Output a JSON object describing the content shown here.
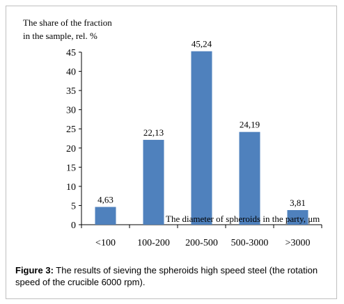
{
  "chart_data": {
    "type": "bar",
    "ylabel_line1": "The share of the fraction",
    "ylabel_line2": "in the sample, rel. %",
    "xlabel": "The diameter of spheroids in the party, μm",
    "categories": [
      "<100",
      "100-200",
      "200-500",
      "500-3000",
      ">3000"
    ],
    "values": [
      4.63,
      22.13,
      45.24,
      24.19,
      3.81
    ],
    "value_labels": [
      "4,63",
      "22,13",
      "45,24",
      "24,19",
      "3,81"
    ],
    "ylim": [
      0,
      45
    ],
    "yticks": [
      0,
      5,
      10,
      15,
      20,
      25,
      30,
      35,
      40,
      45
    ],
    "grid": false,
    "bar_color": "#4f81bd"
  },
  "caption": {
    "label": "Figure 3:",
    "text": " The results of sieving the spheroids high speed steel (the rotation speed of the crucible 6000 rpm)."
  }
}
